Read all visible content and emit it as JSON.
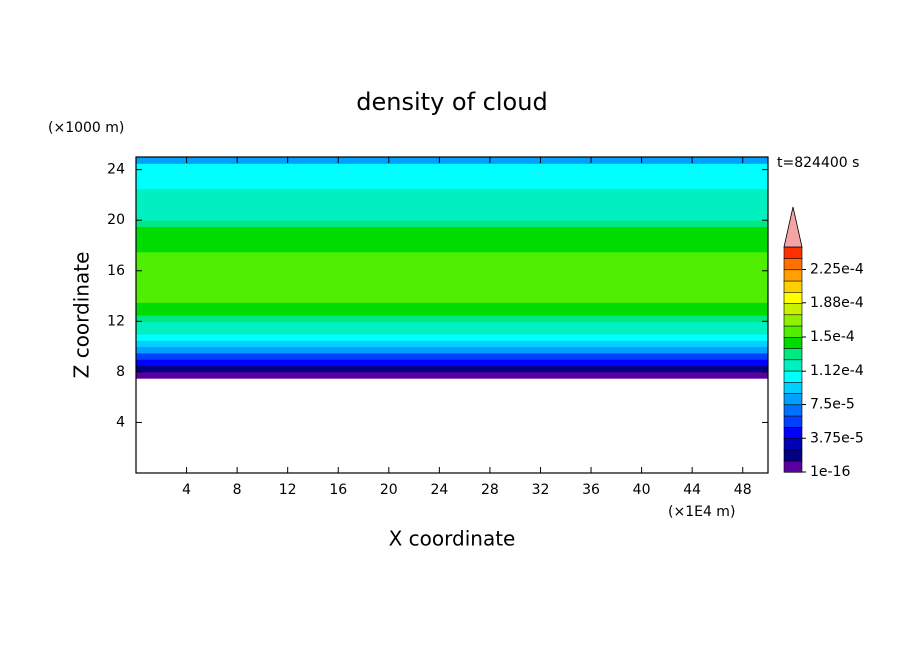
{
  "chart_data": {
    "type": "contour",
    "title": "density of cloud",
    "x_label": "X coordinate",
    "y_label": "Z coordinate",
    "x_unit": "(×1E4 m)",
    "y_unit": "(×1000 m)",
    "annotation": "t=824400 s",
    "xlim": [
      0,
      50
    ],
    "ylim": [
      0,
      25
    ],
    "xticks": [
      4,
      8,
      12,
      16,
      20,
      24,
      28,
      32,
      36,
      40,
      44,
      48
    ],
    "yticks": [
      4,
      8,
      12,
      16,
      20,
      24
    ],
    "z": [
      7.75,
      8.25,
      8.75,
      9.25,
      9.75,
      10.25,
      10.75,
      11.25,
      11.75,
      12.25,
      12.75,
      13.25,
      13.75,
      14.25,
      14.75,
      15.25,
      15.75,
      16.25,
      16.75,
      17.25,
      17.75,
      18.25,
      18.75,
      19.25,
      19.75,
      20.25,
      20.75,
      21.25,
      21.75,
      22.25,
      22.75,
      23.25,
      23.75,
      24.25,
      24.75
    ],
    "values": [
      5e-06,
      2e-05,
      4e-05,
      6e-05,
      8e-05,
      9.5e-05,
      0.000105,
      0.000118,
      0.00012,
      0.00013,
      0.000142,
      0.000142,
      0.000155,
      0.000155,
      0.000155,
      0.000155,
      0.000155,
      0.000155,
      0.000155,
      0.000155,
      0.000142,
      0.000142,
      0.000142,
      0.000142,
      0.00013,
      0.00012,
      0.00012,
      0.000115,
      0.000115,
      0.000115,
      0.000105,
      0.000105,
      0.000105,
      0.000105,
      8e-05
    ],
    "colorbar": {
      "clim": [
        1e-16,
        0.00025
      ],
      "colors": [
        "#5a00a0",
        "#000080",
        "#0000b4",
        "#0000ff",
        "#0040ff",
        "#0070ff",
        "#00a0ff",
        "#00d0ff",
        "#00ffff",
        "#00f0c0",
        "#00e880",
        "#00dc00",
        "#50ee00",
        "#90f000",
        "#c8f000",
        "#ffff00",
        "#ffd000",
        "#ffa000",
        "#ff7000",
        "#ff3000"
      ],
      "extend_color": "#f4a4a4",
      "ticks": [
        1e-16,
        {
          "value": 3.75e-05,
          "label": "3.75e-5"
        },
        {
          "value": 7.5e-05,
          "label": "7.5e-5"
        },
        {
          "value": 0.000112,
          "label": "1.12e-4"
        },
        {
          "value": 0.00015,
          "label": "1.5e-4"
        },
        {
          "value": 0.000188,
          "label": "1.88e-4"
        },
        {
          "value": 0.000225,
          "label": "2.25e-4"
        }
      ]
    }
  }
}
